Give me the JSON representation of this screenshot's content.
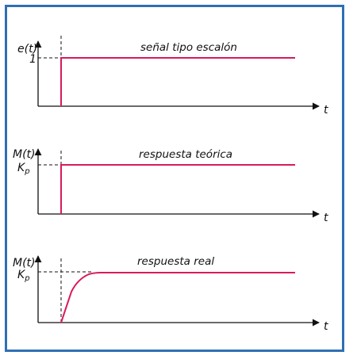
{
  "panels": [
    {
      "title": "señal tipo escalón",
      "ylabel": "e(t)",
      "level_label_main": "1",
      "level_label_sub": "",
      "xlabel": "t",
      "response": "ideal-step"
    },
    {
      "title": "respuesta teórica",
      "ylabel": "M(t)",
      "level_label_main": "K",
      "level_label_sub": "p",
      "xlabel": "t",
      "response": "ideal-step"
    },
    {
      "title": "respuesta real",
      "ylabel": "M(t)",
      "level_label_main": "K",
      "level_label_sub": "p",
      "xlabel": "t",
      "response": "first-order-rise"
    }
  ],
  "colors": {
    "frame": "#2f6fb5",
    "signal": "#d81b5a",
    "axis": "#111111"
  }
}
